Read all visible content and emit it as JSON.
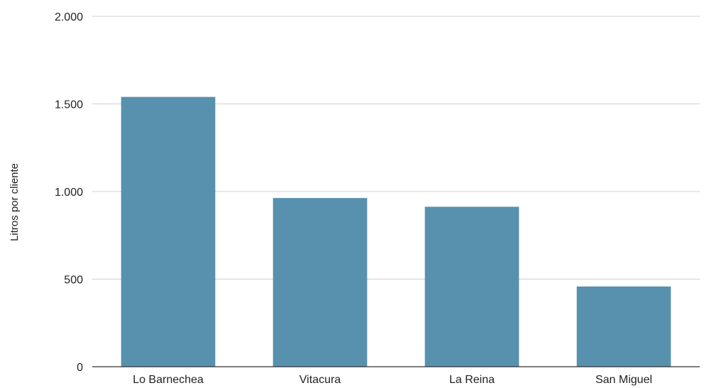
{
  "chart_data": {
    "type": "bar",
    "categories": [
      "Lo Barnechea",
      "Vitacura",
      "La Reina",
      "San Miguel"
    ],
    "values": [
      1540,
      963,
      913,
      458
    ],
    "title": "",
    "xlabel": "",
    "ylabel": "Litros por cliente",
    "ylim": [
      0,
      2000
    ],
    "yticks": [
      0,
      500,
      1000,
      1500,
      2000
    ],
    "ytick_labels": [
      "0",
      "500",
      "1.000",
      "1.500",
      "2.000"
    ],
    "grid": true,
    "legend": "none",
    "colors": {
      "bar": "#5891ae",
      "grid": "#d0d0d0",
      "baseline": "#333333",
      "text": "#222222"
    }
  }
}
